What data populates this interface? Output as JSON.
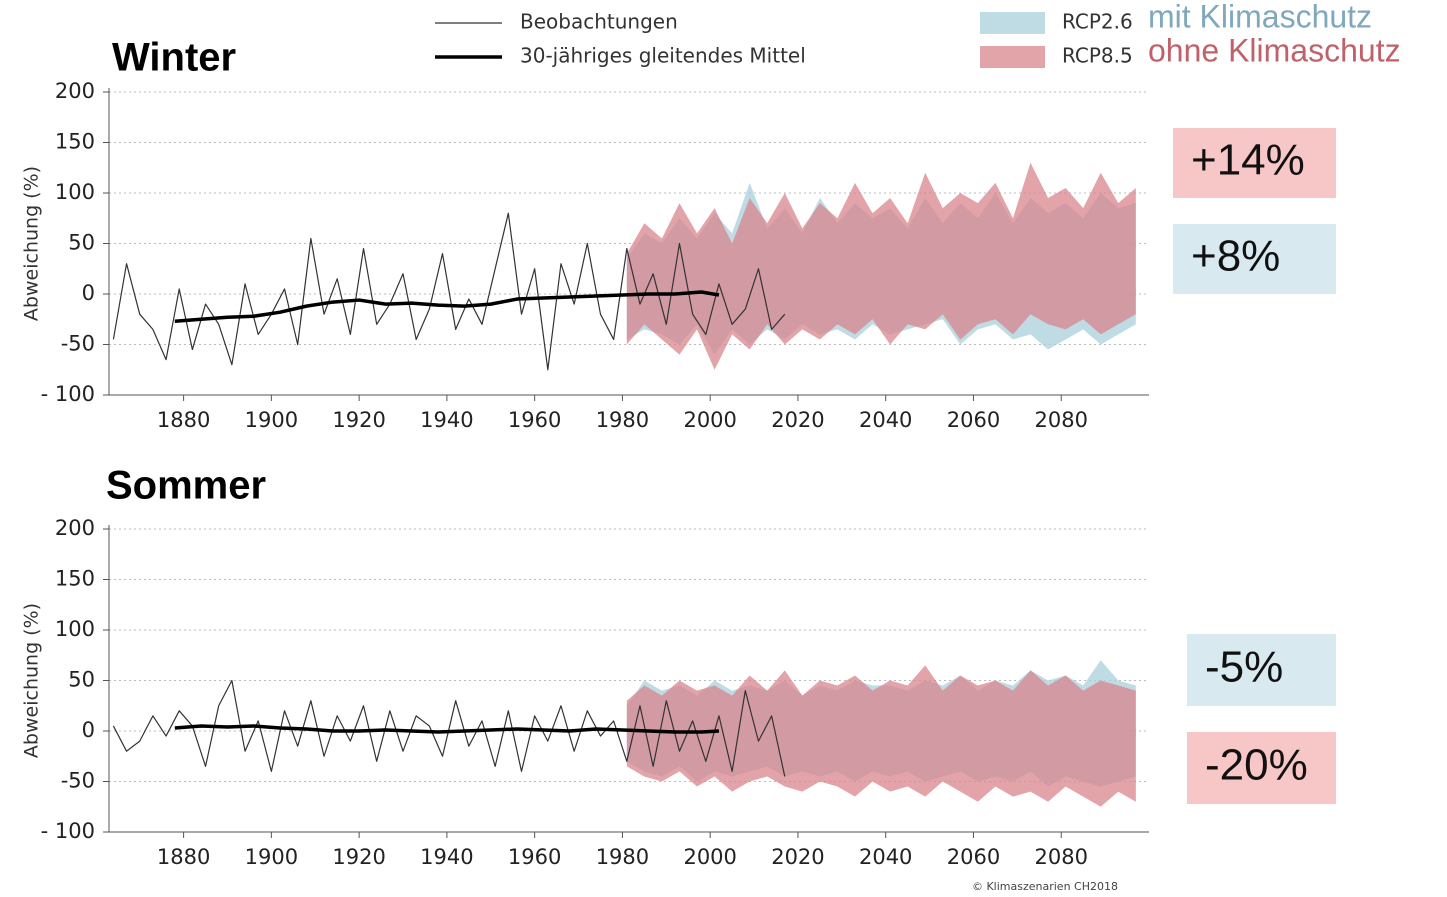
{
  "source": "© Klimaszenarien CH2018",
  "chart_data": [
    {
      "type": "line",
      "title": "Winter",
      "ylabel": "Abweichung (%)",
      "xlim": [
        1863,
        2100
      ],
      "ylim": [
        -100,
        200
      ],
      "xticks": [
        1880,
        1900,
        1920,
        1940,
        1960,
        1980,
        2000,
        2020,
        2040,
        2060,
        2080
      ],
      "yticks": [
        {
          "value": -100,
          "label": "- 100"
        },
        -50,
        0,
        50,
        100,
        150,
        200
      ],
      "grid": true,
      "series": [
        {
          "name": "RCP2.6",
          "description": "mit Klimaschutz",
          "description_color": "#7fa8bd",
          "kind": "band",
          "color": "#a9cfdb",
          "x": [
            1981,
            1985,
            1989,
            1993,
            1997,
            2001,
            2005,
            2009,
            2013,
            2017,
            2021,
            2025,
            2029,
            2033,
            2037,
            2041,
            2045,
            2049,
            2053,
            2057,
            2061,
            2065,
            2069,
            2073,
            2077,
            2081,
            2085,
            2089,
            2093,
            2097
          ],
          "upper": [
            35,
            60,
            50,
            75,
            55,
            80,
            60,
            110,
            65,
            85,
            60,
            95,
            70,
            90,
            75,
            85,
            65,
            95,
            70,
            90,
            75,
            100,
            70,
            95,
            80,
            90,
            75,
            100,
            85,
            90
          ],
          "lower": [
            -45,
            -35,
            -40,
            -50,
            -30,
            -60,
            -35,
            -50,
            -35,
            -45,
            -30,
            -40,
            -35,
            -45,
            -30,
            -40,
            -35,
            -30,
            -25,
            -50,
            -35,
            -30,
            -45,
            -40,
            -55,
            -45,
            -35,
            -50,
            -40,
            -30
          ]
        },
        {
          "name": "RCP8.5",
          "description": "ohne Klimaschutz",
          "description_color": "#c0616a",
          "kind": "band",
          "color": "#d8848c",
          "x": [
            1981,
            1985,
            1989,
            1993,
            1997,
            2001,
            2005,
            2009,
            2013,
            2017,
            2021,
            2025,
            2029,
            2033,
            2037,
            2041,
            2045,
            2049,
            2053,
            2057,
            2061,
            2065,
            2069,
            2073,
            2077,
            2081,
            2085,
            2089,
            2093,
            2097
          ],
          "upper": [
            40,
            70,
            55,
            90,
            60,
            85,
            50,
            95,
            70,
            100,
            65,
            90,
            75,
            110,
            80,
            95,
            70,
            120,
            85,
            100,
            90,
            110,
            75,
            130,
            95,
            105,
            85,
            120,
            90,
            105
          ],
          "lower": [
            -50,
            -30,
            -45,
            -60,
            -35,
            -75,
            -40,
            -55,
            -30,
            -50,
            -35,
            -45,
            -30,
            -40,
            -25,
            -50,
            -30,
            -35,
            -20,
            -45,
            -30,
            -25,
            -40,
            -20,
            -30,
            -35,
            -25,
            -40,
            -30,
            -20
          ]
        },
        {
          "name": "Beobachtungen",
          "kind": "line",
          "color": "#333333",
          "width": 1.2,
          "x": [
            1864,
            1867,
            1870,
            1873,
            1876,
            1879,
            1882,
            1885,
            1888,
            1891,
            1894,
            1897,
            1900,
            1903,
            1906,
            1909,
            1912,
            1915,
            1918,
            1921,
            1924,
            1927,
            1930,
            1933,
            1936,
            1939,
            1942,
            1945,
            1948,
            1951,
            1954,
            1957,
            1960,
            1963,
            1966,
            1969,
            1972,
            1975,
            1978,
            1981,
            1984,
            1987,
            1990,
            1993,
            1996,
            1999,
            2002,
            2005,
            2008,
            2011,
            2014,
            2017
          ],
          "values": [
            -45,
            30,
            -20,
            -35,
            -65,
            5,
            -55,
            -10,
            -30,
            -70,
            10,
            -40,
            -20,
            5,
            -50,
            55,
            -20,
            15,
            -40,
            45,
            -30,
            -10,
            20,
            -45,
            -15,
            40,
            -35,
            -5,
            -30,
            25,
            80,
            -20,
            25,
            -75,
            30,
            -10,
            50,
            -20,
            -45,
            45,
            -10,
            20,
            -30,
            50,
            -20,
            -40,
            10,
            -30,
            -15,
            25,
            -35,
            -20
          ]
        },
        {
          "name": "30-jähriges gleitendes Mittel",
          "kind": "line",
          "color": "#000000",
          "width": 3.5,
          "x": [
            1878,
            1884,
            1890,
            1896,
            1902,
            1908,
            1914,
            1920,
            1926,
            1932,
            1938,
            1944,
            1950,
            1956,
            1962,
            1968,
            1974,
            1980,
            1986,
            1992,
            1998,
            2002
          ],
          "values": [
            -27,
            -25,
            -23,
            -22,
            -18,
            -12,
            -8,
            -6,
            -10,
            -9,
            -11,
            -12,
            -10,
            -5,
            -4,
            -3,
            -2,
            -1,
            0,
            0,
            2,
            -1
          ]
        }
      ],
      "annotations": [
        {
          "text": "+14%",
          "background": "#f7c6c6"
        },
        {
          "text": "+8%",
          "background": "#d8e9ef"
        }
      ]
    },
    {
      "type": "line",
      "title": "Sommer",
      "ylabel": "Abweichung (%)",
      "xlim": [
        1863,
        2100
      ],
      "ylim": [
        -100,
        200
      ],
      "xticks": [
        1880,
        1900,
        1920,
        1940,
        1960,
        1980,
        2000,
        2020,
        2040,
        2060,
        2080
      ],
      "yticks": [
        {
          "value": -100,
          "label": "- 100"
        },
        -50,
        0,
        50,
        100,
        150,
        200
      ],
      "grid": true,
      "series": [
        {
          "kind": "band",
          "color": "#a9cfdb",
          "x": [
            1981,
            1985,
            1989,
            1993,
            1997,
            2001,
            2005,
            2009,
            2013,
            2017,
            2021,
            2025,
            2029,
            2033,
            2037,
            2041,
            2045,
            2049,
            2053,
            2057,
            2061,
            2065,
            2069,
            2073,
            2077,
            2081,
            2085,
            2089,
            2093,
            2097
          ],
          "upper": [
            25,
            50,
            40,
            45,
            35,
            50,
            40,
            45,
            40,
            50,
            35,
            45,
            40,
            50,
            45,
            45,
            40,
            50,
            45,
            55,
            40,
            50,
            45,
            60,
            50,
            55,
            45,
            70,
            50,
            45
          ],
          "lower": [
            -30,
            -40,
            -45,
            -35,
            -50,
            -40,
            -45,
            -40,
            -35,
            -45,
            -40,
            -45,
            -40,
            -50,
            -40,
            -45,
            -40,
            -50,
            -45,
            -40,
            -50,
            -45,
            -50,
            -40,
            -55,
            -45,
            -50,
            -55,
            -50,
            -45
          ]
        },
        {
          "kind": "band",
          "color": "#d8848c",
          "x": [
            1981,
            1985,
            1989,
            1993,
            1997,
            2001,
            2005,
            2009,
            2013,
            2017,
            2021,
            2025,
            2029,
            2033,
            2037,
            2041,
            2045,
            2049,
            2053,
            2057,
            2061,
            2065,
            2069,
            2073,
            2077,
            2081,
            2085,
            2089,
            2093,
            2097
          ],
          "upper": [
            30,
            45,
            35,
            50,
            40,
            45,
            35,
            55,
            40,
            60,
            35,
            50,
            45,
            55,
            40,
            50,
            45,
            65,
            40,
            55,
            45,
            50,
            40,
            60,
            45,
            55,
            40,
            50,
            45,
            40
          ],
          "lower": [
            -35,
            -45,
            -50,
            -40,
            -55,
            -45,
            -60,
            -50,
            -45,
            -55,
            -60,
            -50,
            -55,
            -65,
            -50,
            -60,
            -55,
            -65,
            -50,
            -60,
            -70,
            -55,
            -65,
            -60,
            -70,
            -55,
            -65,
            -75,
            -60,
            -70
          ]
        },
        {
          "kind": "line",
          "color": "#333333",
          "width": 1.2,
          "x": [
            1864,
            1867,
            1870,
            1873,
            1876,
            1879,
            1882,
            1885,
            1888,
            1891,
            1894,
            1897,
            1900,
            1903,
            1906,
            1909,
            1912,
            1915,
            1918,
            1921,
            1924,
            1927,
            1930,
            1933,
            1936,
            1939,
            1942,
            1945,
            1948,
            1951,
            1954,
            1957,
            1960,
            1963,
            1966,
            1969,
            1972,
            1975,
            1978,
            1981,
            1984,
            1987,
            1990,
            1993,
            1996,
            1999,
            2002,
            2005,
            2008,
            2011,
            2014,
            2017
          ],
          "values": [
            5,
            -20,
            -10,
            15,
            -5,
            20,
            5,
            -35,
            25,
            50,
            -20,
            10,
            -40,
            20,
            -15,
            30,
            -25,
            15,
            -10,
            25,
            -30,
            20,
            -20,
            15,
            5,
            -25,
            30,
            -15,
            10,
            -35,
            20,
            -40,
            15,
            -10,
            25,
            -20,
            20,
            -5,
            10,
            -30,
            25,
            -35,
            30,
            -20,
            10,
            -30,
            15,
            -40,
            40,
            -10,
            15,
            -45
          ]
        },
        {
          "kind": "line",
          "color": "#000000",
          "width": 3.5,
          "x": [
            1878,
            1884,
            1890,
            1896,
            1902,
            1908,
            1914,
            1920,
            1926,
            1932,
            1938,
            1944,
            1950,
            1956,
            1962,
            1968,
            1974,
            1980,
            1986,
            1992,
            1998,
            2002
          ],
          "values": [
            3,
            5,
            4,
            5,
            3,
            2,
            0,
            0,
            1,
            0,
            -1,
            0,
            1,
            2,
            1,
            0,
            2,
            1,
            0,
            -1,
            -1,
            0
          ]
        }
      ],
      "annotations": [
        {
          "text": "-5%",
          "background": "#d8e9ef"
        },
        {
          "text": "-20%",
          "background": "#f7c6c6"
        }
      ]
    }
  ]
}
